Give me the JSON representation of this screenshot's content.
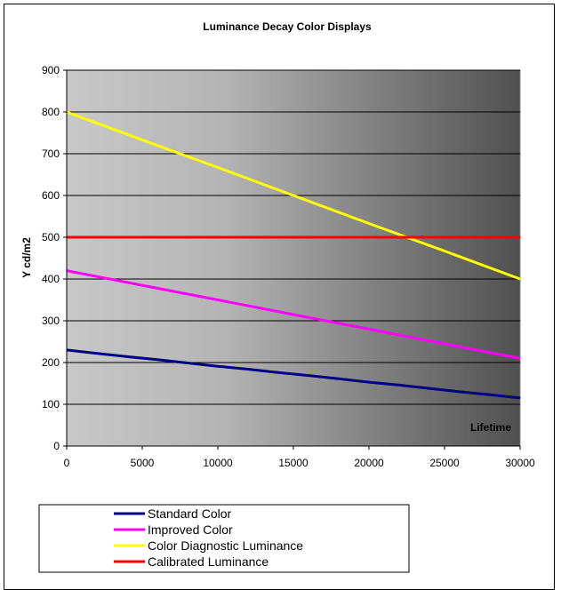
{
  "chart_data": {
    "type": "line",
    "title": "Luminance Decay Color Displays",
    "xlabel": "Lifetime",
    "ylabel": "Y cd/m2",
    "xlim": [
      0,
      30000
    ],
    "ylim": [
      0,
      900
    ],
    "x_ticks": [
      "0",
      "5000",
      "10000",
      "15000",
      "20000",
      "25000",
      "30000"
    ],
    "y_ticks": [
      "0",
      "100",
      "200",
      "300",
      "400",
      "500",
      "600",
      "700",
      "800",
      "900"
    ],
    "grid": true,
    "legend_position": "bottom-left",
    "series": [
      {
        "name": "Standard Color",
        "color": "#000080",
        "x": [
          0,
          2000,
          4000,
          6000,
          8000,
          10000,
          12000,
          14000,
          16000,
          18000,
          20000,
          22000,
          24000,
          26000,
          28000,
          30000
        ],
        "y": [
          230,
          222,
          214,
          207,
          199,
          191,
          184,
          176,
          169,
          161,
          153,
          146,
          138,
          130,
          123,
          115
        ]
      },
      {
        "name": "Improved Color",
        "color": "#FF00FF",
        "x": [
          0,
          5000,
          10000,
          15000,
          20000,
          25000,
          30000
        ],
        "y": [
          420,
          385,
          350,
          315,
          280,
          245,
          210
        ]
      },
      {
        "name": "Color Diagnostic Luminance",
        "color": "#FFFF00",
        "x": [
          0,
          5000,
          10000,
          15000,
          20000,
          25000,
          30000
        ],
        "y": [
          800,
          733,
          667,
          600,
          533,
          467,
          400
        ]
      },
      {
        "name": "Calibrated Luminance",
        "color": "#FF0000",
        "x": [
          0,
          30000
        ],
        "y": [
          500,
          500
        ]
      }
    ]
  }
}
